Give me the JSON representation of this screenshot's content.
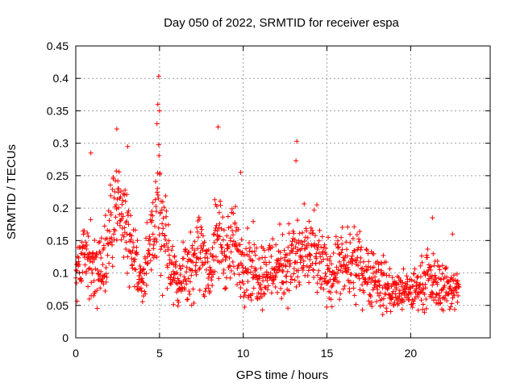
{
  "chart_data": {
    "type": "scatter",
    "title": "Day 050 of 2022, SRMTID for receiver espa",
    "xlabel": "GPS time / hours",
    "ylabel": "SRMTID / TECUs",
    "xlim": [
      0,
      24.75
    ],
    "ylim": [
      0,
      0.45
    ],
    "xticks": [
      0,
      5,
      10,
      15,
      20
    ],
    "yticks": [
      0,
      0.05,
      0.1,
      0.15,
      0.2,
      0.25,
      0.3,
      0.35,
      0.4,
      0.45
    ],
    "xtick_labels": [
      "0",
      "5",
      "10",
      "15",
      "20"
    ],
    "ytick_labels": [
      "0",
      "0.05",
      "0.1",
      "0.15",
      "0.2",
      "0.25",
      "0.3",
      "0.35",
      "0.4",
      "0.45"
    ],
    "grid": true,
    "marker": "+",
    "color": "#ff0000",
    "series_profile": [
      {
        "t": 0.0,
        "mean": 0.09,
        "spread": 0.035
      },
      {
        "t": 0.5,
        "mean": 0.14,
        "spread": 0.05
      },
      {
        "t": 1.0,
        "mean": 0.12,
        "spread": 0.06
      },
      {
        "t": 1.5,
        "mean": 0.1,
        "spread": 0.04
      },
      {
        "t": 2.0,
        "mean": 0.17,
        "spread": 0.06
      },
      {
        "t": 2.5,
        "mean": 0.2,
        "spread": 0.07
      },
      {
        "t": 3.0,
        "mean": 0.19,
        "spread": 0.07
      },
      {
        "t": 3.5,
        "mean": 0.12,
        "spread": 0.05
      },
      {
        "t": 4.0,
        "mean": 0.08,
        "spread": 0.035
      },
      {
        "t": 4.5,
        "mean": 0.15,
        "spread": 0.05
      },
      {
        "t": 5.0,
        "mean": 0.2,
        "spread": 0.08
      },
      {
        "t": 5.5,
        "mean": 0.13,
        "spread": 0.05
      },
      {
        "t": 6.0,
        "mean": 0.09,
        "spread": 0.04
      },
      {
        "t": 6.5,
        "mean": 0.1,
        "spread": 0.04
      },
      {
        "t": 7.0,
        "mean": 0.12,
        "spread": 0.05
      },
      {
        "t": 7.5,
        "mean": 0.14,
        "spread": 0.05
      },
      {
        "t": 8.0,
        "mean": 0.1,
        "spread": 0.04
      },
      {
        "t": 8.5,
        "mean": 0.16,
        "spread": 0.06
      },
      {
        "t": 9.0,
        "mean": 0.13,
        "spread": 0.05
      },
      {
        "t": 9.5,
        "mean": 0.14,
        "spread": 0.05
      },
      {
        "t": 10.0,
        "mean": 0.12,
        "spread": 0.05
      },
      {
        "t": 11.0,
        "mean": 0.1,
        "spread": 0.04
      },
      {
        "t": 12.0,
        "mean": 0.11,
        "spread": 0.045
      },
      {
        "t": 13.0,
        "mean": 0.12,
        "spread": 0.05
      },
      {
        "t": 14.0,
        "mean": 0.13,
        "spread": 0.05
      },
      {
        "t": 15.0,
        "mean": 0.1,
        "spread": 0.04
      },
      {
        "t": 16.0,
        "mean": 0.11,
        "spread": 0.045
      },
      {
        "t": 17.0,
        "mean": 0.11,
        "spread": 0.04
      },
      {
        "t": 18.0,
        "mean": 0.09,
        "spread": 0.04
      },
      {
        "t": 19.0,
        "mean": 0.07,
        "spread": 0.025
      },
      {
        "t": 20.0,
        "mean": 0.07,
        "spread": 0.025
      },
      {
        "t": 21.0,
        "mean": 0.09,
        "spread": 0.035
      },
      {
        "t": 22.0,
        "mean": 0.08,
        "spread": 0.03
      },
      {
        "t": 22.9,
        "mean": 0.07,
        "spread": 0.025
      }
    ],
    "outliers": [
      {
        "x": 4.95,
        "y": 0.403
      },
      {
        "x": 4.9,
        "y": 0.36
      },
      {
        "x": 5.0,
        "y": 0.35
      },
      {
        "x": 4.85,
        "y": 0.33
      },
      {
        "x": 8.5,
        "y": 0.325
      },
      {
        "x": 2.45,
        "y": 0.322
      },
      {
        "x": 13.2,
        "y": 0.303
      },
      {
        "x": 3.1,
        "y": 0.295
      },
      {
        "x": 13.15,
        "y": 0.273
      },
      {
        "x": 0.9,
        "y": 0.285
      },
      {
        "x": 9.85,
        "y": 0.255
      },
      {
        "x": 14.4,
        "y": 0.205
      },
      {
        "x": 21.3,
        "y": 0.185
      },
      {
        "x": 22.5,
        "y": 0.16
      }
    ]
  }
}
